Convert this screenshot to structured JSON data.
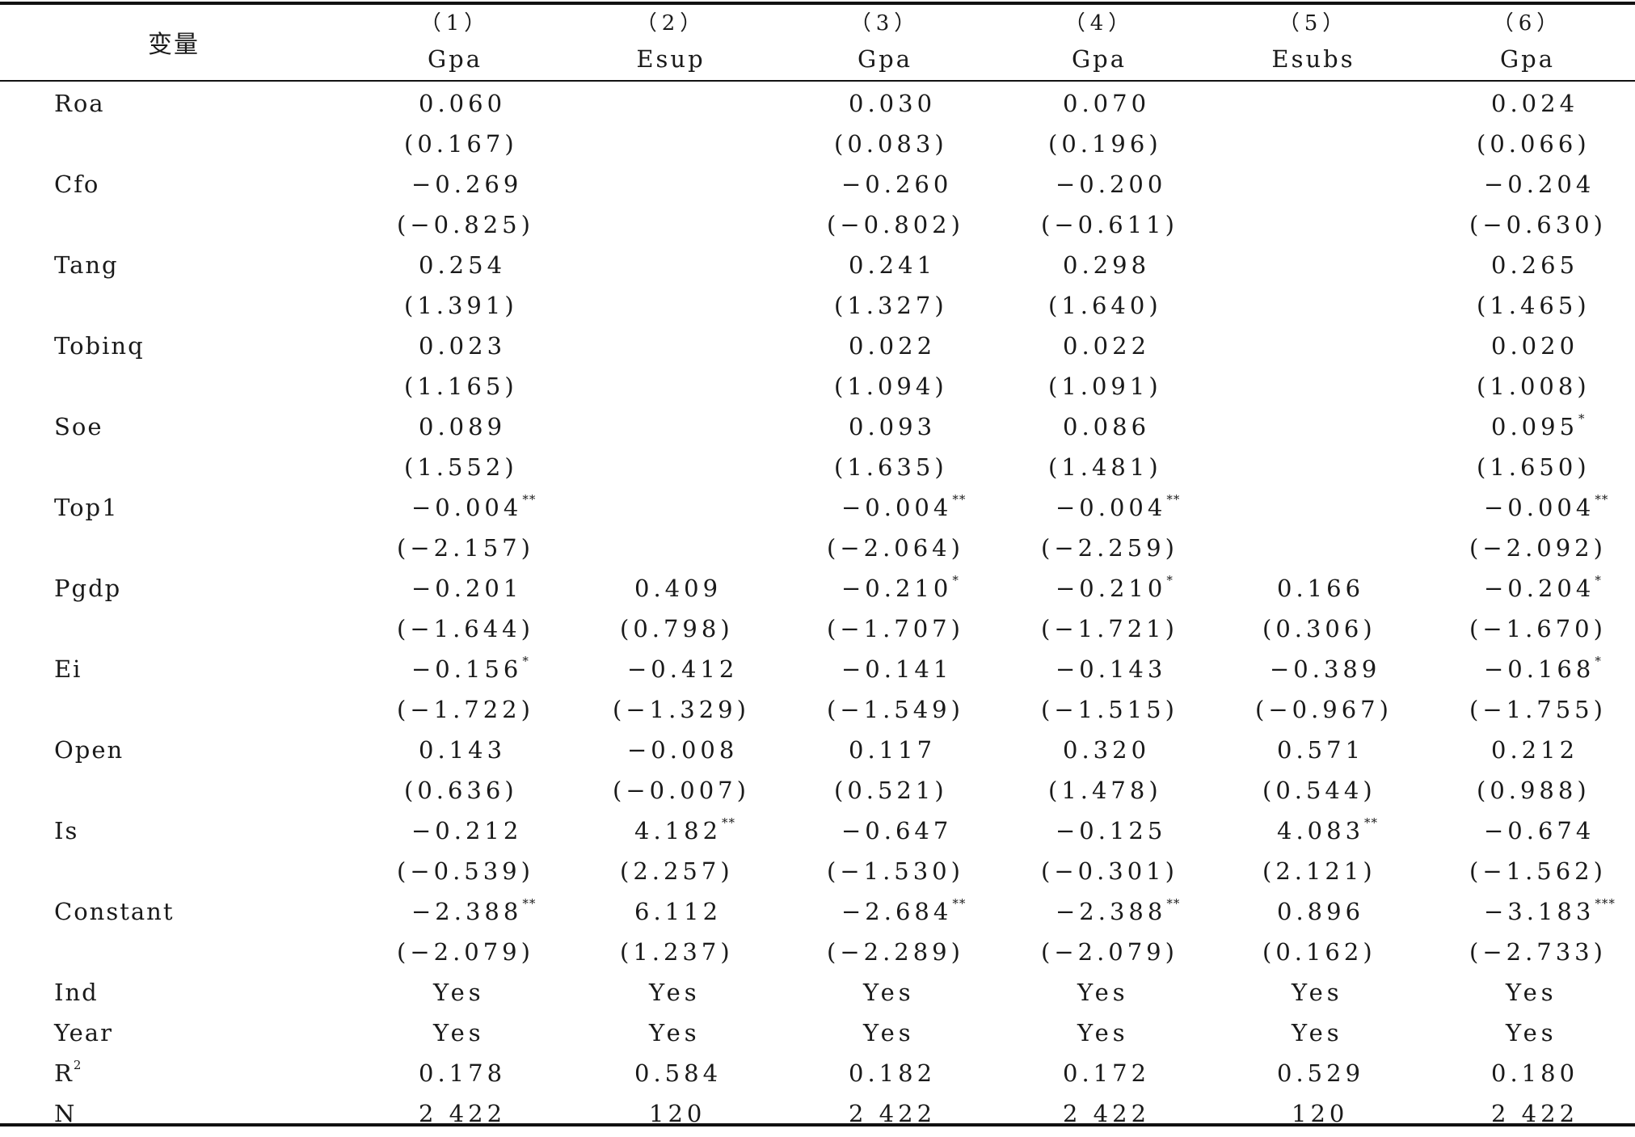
{
  "header": {
    "variable_label": "变量",
    "columns": [
      {
        "num": "（1）",
        "dep": "Gpa"
      },
      {
        "num": "（2）",
        "dep": "Esup"
      },
      {
        "num": "（3）",
        "dep": "Gpa"
      },
      {
        "num": "（4）",
        "dep": "Gpa"
      },
      {
        "num": "（5）",
        "dep": "Esubs"
      },
      {
        "num": "（6）",
        "dep": "Gpa"
      }
    ]
  },
  "rows": [
    {
      "label": "Roa",
      "cells": [
        {
          "v": "0.060",
          "s": ""
        },
        {
          "v": "",
          "s": ""
        },
        {
          "v": "0.030",
          "s": ""
        },
        {
          "v": "0.070",
          "s": ""
        },
        {
          "v": "",
          "s": ""
        },
        {
          "v": "0.024",
          "s": ""
        }
      ]
    },
    {
      "label": "",
      "cells": [
        {
          "v": "(0.167)",
          "s": ""
        },
        {
          "v": "",
          "s": ""
        },
        {
          "v": "(0.083)",
          "s": ""
        },
        {
          "v": "(0.196)",
          "s": ""
        },
        {
          "v": "",
          "s": ""
        },
        {
          "v": "(0.066)",
          "s": ""
        }
      ]
    },
    {
      "label": "Cfo",
      "cells": [
        {
          "v": "−0.269",
          "s": ""
        },
        {
          "v": "",
          "s": ""
        },
        {
          "v": "−0.260",
          "s": ""
        },
        {
          "v": "−0.200",
          "s": ""
        },
        {
          "v": "",
          "s": ""
        },
        {
          "v": "−0.204",
          "s": ""
        }
      ]
    },
    {
      "label": "",
      "cells": [
        {
          "v": "(−0.825)",
          "s": ""
        },
        {
          "v": "",
          "s": ""
        },
        {
          "v": "(−0.802)",
          "s": ""
        },
        {
          "v": "(−0.611)",
          "s": ""
        },
        {
          "v": "",
          "s": ""
        },
        {
          "v": "(−0.630)",
          "s": ""
        }
      ]
    },
    {
      "label": "Tang",
      "cells": [
        {
          "v": "0.254",
          "s": ""
        },
        {
          "v": "",
          "s": ""
        },
        {
          "v": "0.241",
          "s": ""
        },
        {
          "v": "0.298",
          "s": ""
        },
        {
          "v": "",
          "s": ""
        },
        {
          "v": "0.265",
          "s": ""
        }
      ]
    },
    {
      "label": "",
      "cells": [
        {
          "v": "(1.391)",
          "s": ""
        },
        {
          "v": "",
          "s": ""
        },
        {
          "v": "(1.327)",
          "s": ""
        },
        {
          "v": "(1.640)",
          "s": ""
        },
        {
          "v": "",
          "s": ""
        },
        {
          "v": "(1.465)",
          "s": ""
        }
      ]
    },
    {
      "label": "Tobinq",
      "cells": [
        {
          "v": "0.023",
          "s": ""
        },
        {
          "v": "",
          "s": ""
        },
        {
          "v": "0.022",
          "s": ""
        },
        {
          "v": "0.022",
          "s": ""
        },
        {
          "v": "",
          "s": ""
        },
        {
          "v": "0.020",
          "s": ""
        }
      ]
    },
    {
      "label": "",
      "cells": [
        {
          "v": "(1.165)",
          "s": ""
        },
        {
          "v": "",
          "s": ""
        },
        {
          "v": "(1.094)",
          "s": ""
        },
        {
          "v": "(1.091)",
          "s": ""
        },
        {
          "v": "",
          "s": ""
        },
        {
          "v": "(1.008)",
          "s": ""
        }
      ]
    },
    {
      "label": "Soe",
      "cells": [
        {
          "v": "0.089",
          "s": ""
        },
        {
          "v": "",
          "s": ""
        },
        {
          "v": "0.093",
          "s": ""
        },
        {
          "v": "0.086",
          "s": ""
        },
        {
          "v": "",
          "s": ""
        },
        {
          "v": "0.095",
          "s": "*"
        }
      ]
    },
    {
      "label": "",
      "cells": [
        {
          "v": "(1.552)",
          "s": ""
        },
        {
          "v": "",
          "s": ""
        },
        {
          "v": "(1.635)",
          "s": ""
        },
        {
          "v": "(1.481)",
          "s": ""
        },
        {
          "v": "",
          "s": ""
        },
        {
          "v": "(1.650)",
          "s": ""
        }
      ]
    },
    {
      "label": "Top1",
      "cells": [
        {
          "v": "−0.004",
          "s": "**"
        },
        {
          "v": "",
          "s": ""
        },
        {
          "v": "−0.004",
          "s": "**"
        },
        {
          "v": "−0.004",
          "s": "**"
        },
        {
          "v": "",
          "s": ""
        },
        {
          "v": "−0.004",
          "s": "**"
        }
      ]
    },
    {
      "label": "",
      "cells": [
        {
          "v": "(−2.157)",
          "s": ""
        },
        {
          "v": "",
          "s": ""
        },
        {
          "v": "(−2.064)",
          "s": ""
        },
        {
          "v": "(−2.259)",
          "s": ""
        },
        {
          "v": "",
          "s": ""
        },
        {
          "v": "(−2.092)",
          "s": ""
        }
      ]
    },
    {
      "label": "Pgdp",
      "cells": [
        {
          "v": "−0.201",
          "s": ""
        },
        {
          "v": "0.409",
          "s": ""
        },
        {
          "v": "−0.210",
          "s": "*"
        },
        {
          "v": "−0.210",
          "s": "*"
        },
        {
          "v": "0.166",
          "s": ""
        },
        {
          "v": "−0.204",
          "s": "*"
        }
      ]
    },
    {
      "label": "",
      "cells": [
        {
          "v": "(−1.644)",
          "s": ""
        },
        {
          "v": "(0.798)",
          "s": ""
        },
        {
          "v": "(−1.707)",
          "s": ""
        },
        {
          "v": "(−1.721)",
          "s": ""
        },
        {
          "v": "(0.306)",
          "s": ""
        },
        {
          "v": "(−1.670)",
          "s": ""
        }
      ]
    },
    {
      "label": "Ei",
      "cells": [
        {
          "v": "−0.156",
          "s": "*"
        },
        {
          "v": "−0.412",
          "s": ""
        },
        {
          "v": "−0.141",
          "s": ""
        },
        {
          "v": "−0.143",
          "s": ""
        },
        {
          "v": "−0.389",
          "s": ""
        },
        {
          "v": "−0.168",
          "s": "*"
        }
      ]
    },
    {
      "label": "",
      "cells": [
        {
          "v": "(−1.722)",
          "s": ""
        },
        {
          "v": "(−1.329)",
          "s": ""
        },
        {
          "v": "(−1.549)",
          "s": ""
        },
        {
          "v": "(−1.515)",
          "s": ""
        },
        {
          "v": "(−0.967)",
          "s": ""
        },
        {
          "v": "(−1.755)",
          "s": ""
        }
      ]
    },
    {
      "label": "Open",
      "cells": [
        {
          "v": "0.143",
          "s": ""
        },
        {
          "v": "−0.008",
          "s": ""
        },
        {
          "v": "0.117",
          "s": ""
        },
        {
          "v": "0.320",
          "s": ""
        },
        {
          "v": "0.571",
          "s": ""
        },
        {
          "v": "0.212",
          "s": ""
        }
      ]
    },
    {
      "label": "",
      "cells": [
        {
          "v": "(0.636)",
          "s": ""
        },
        {
          "v": "(−0.007)",
          "s": ""
        },
        {
          "v": "(0.521)",
          "s": ""
        },
        {
          "v": "(1.478)",
          "s": ""
        },
        {
          "v": "(0.544)",
          "s": ""
        },
        {
          "v": "(0.988)",
          "s": ""
        }
      ]
    },
    {
      "label": "Is",
      "cells": [
        {
          "v": "−0.212",
          "s": ""
        },
        {
          "v": "4.182",
          "s": "**"
        },
        {
          "v": "−0.647",
          "s": ""
        },
        {
          "v": "−0.125",
          "s": ""
        },
        {
          "v": "4.083",
          "s": "**"
        },
        {
          "v": "−0.674",
          "s": ""
        }
      ]
    },
    {
      "label": "",
      "cells": [
        {
          "v": "(−0.539)",
          "s": ""
        },
        {
          "v": "(2.257)",
          "s": ""
        },
        {
          "v": "(−1.530)",
          "s": ""
        },
        {
          "v": "(−0.301)",
          "s": ""
        },
        {
          "v": "(2.121)",
          "s": ""
        },
        {
          "v": "(−1.562)",
          "s": ""
        }
      ]
    },
    {
      "label": "Constant",
      "cells": [
        {
          "v": "−2.388",
          "s": "**"
        },
        {
          "v": "6.112",
          "s": ""
        },
        {
          "v": "−2.684",
          "s": "**"
        },
        {
          "v": "−2.388",
          "s": "**"
        },
        {
          "v": "0.896",
          "s": ""
        },
        {
          "v": "−3.183",
          "s": "***"
        }
      ]
    },
    {
      "label": "",
      "cells": [
        {
          "v": "(−2.079)",
          "s": ""
        },
        {
          "v": "(1.237)",
          "s": ""
        },
        {
          "v": "(−2.289)",
          "s": ""
        },
        {
          "v": "(−2.079)",
          "s": ""
        },
        {
          "v": "(0.162)",
          "s": ""
        },
        {
          "v": "(−2.733)",
          "s": ""
        }
      ]
    },
    {
      "label": "Ind",
      "cells": [
        {
          "v": "Yes",
          "s": ""
        },
        {
          "v": "Yes",
          "s": ""
        },
        {
          "v": "Yes",
          "s": ""
        },
        {
          "v": "Yes",
          "s": ""
        },
        {
          "v": "Yes",
          "s": ""
        },
        {
          "v": "Yes",
          "s": ""
        }
      ]
    },
    {
      "label": "Year",
      "cells": [
        {
          "v": "Yes",
          "s": ""
        },
        {
          "v": "Yes",
          "s": ""
        },
        {
          "v": "Yes",
          "s": ""
        },
        {
          "v": "Yes",
          "s": ""
        },
        {
          "v": "Yes",
          "s": ""
        },
        {
          "v": "Yes",
          "s": ""
        }
      ]
    },
    {
      "label": "R",
      "label_sup": "2",
      "cells": [
        {
          "v": "0.178",
          "s": ""
        },
        {
          "v": "0.584",
          "s": ""
        },
        {
          "v": "0.182",
          "s": ""
        },
        {
          "v": "0.172",
          "s": ""
        },
        {
          "v": "0.529",
          "s": ""
        },
        {
          "v": "0.180",
          "s": ""
        }
      ]
    },
    {
      "label": "N",
      "cells": [
        {
          "v": "2 422",
          "s": ""
        },
        {
          "v": "120",
          "s": ""
        },
        {
          "v": "2 422",
          "s": ""
        },
        {
          "v": "2 422",
          "s": ""
        },
        {
          "v": "120",
          "s": ""
        },
        {
          "v": "2 422",
          "s": ""
        }
      ]
    }
  ]
}
